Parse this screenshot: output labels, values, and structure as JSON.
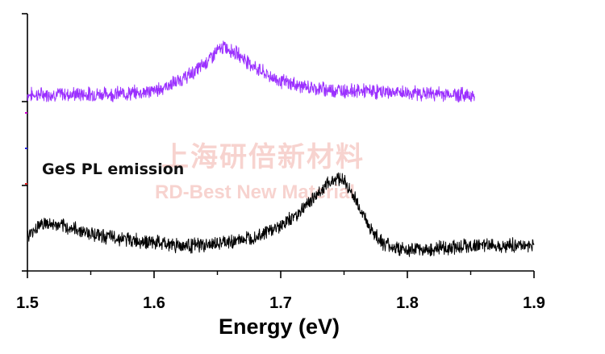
{
  "chart_data": {
    "type": "line",
    "title": "",
    "xlabel": "Energy (eV)",
    "ylabel": "",
    "xlim": [
      1.5,
      1.9
    ],
    "x_ticks": [
      "1.5",
      "1.6",
      "1.7",
      "1.8",
      "1.9"
    ],
    "annotation": "GeS PL emission",
    "watermark": {
      "cn": "上海研倍新材料",
      "en": "RD-Best New Material"
    },
    "grid": false,
    "legend": "none",
    "series": [
      {
        "color": "#9b30ff",
        "x": [
          1.5,
          1.52,
          1.54,
          1.56,
          1.58,
          1.6,
          1.61,
          1.62,
          1.63,
          1.64,
          1.65,
          1.655,
          1.66,
          1.67,
          1.68,
          1.69,
          1.7,
          1.72,
          1.74,
          1.76,
          1.78,
          1.8,
          1.82,
          1.84,
          1.853
        ],
        "y": [
          0.685,
          0.687,
          0.687,
          0.688,
          0.69,
          0.7,
          0.718,
          0.74,
          0.768,
          0.806,
          0.855,
          0.87,
          0.862,
          0.83,
          0.79,
          0.76,
          0.738,
          0.714,
          0.704,
          0.7,
          0.696,
          0.692,
          0.689,
          0.686,
          0.684
        ]
      },
      {
        "color": "#000000",
        "x": [
          1.5,
          1.51,
          1.52,
          1.54,
          1.56,
          1.58,
          1.6,
          1.62,
          1.64,
          1.66,
          1.68,
          1.7,
          1.71,
          1.72,
          1.73,
          1.74,
          1.745,
          1.75,
          1.76,
          1.77,
          1.78,
          1.79,
          1.8,
          1.82,
          1.84,
          1.86,
          1.88,
          1.9
        ],
        "y": [
          0.13,
          0.185,
          0.18,
          0.16,
          0.135,
          0.122,
          0.11,
          0.1,
          0.1,
          0.112,
          0.135,
          0.175,
          0.21,
          0.255,
          0.305,
          0.35,
          0.365,
          0.35,
          0.27,
          0.17,
          0.11,
          0.09,
          0.08,
          0.085,
          0.095,
          0.1,
          0.1,
          0.1
        ]
      }
    ]
  }
}
